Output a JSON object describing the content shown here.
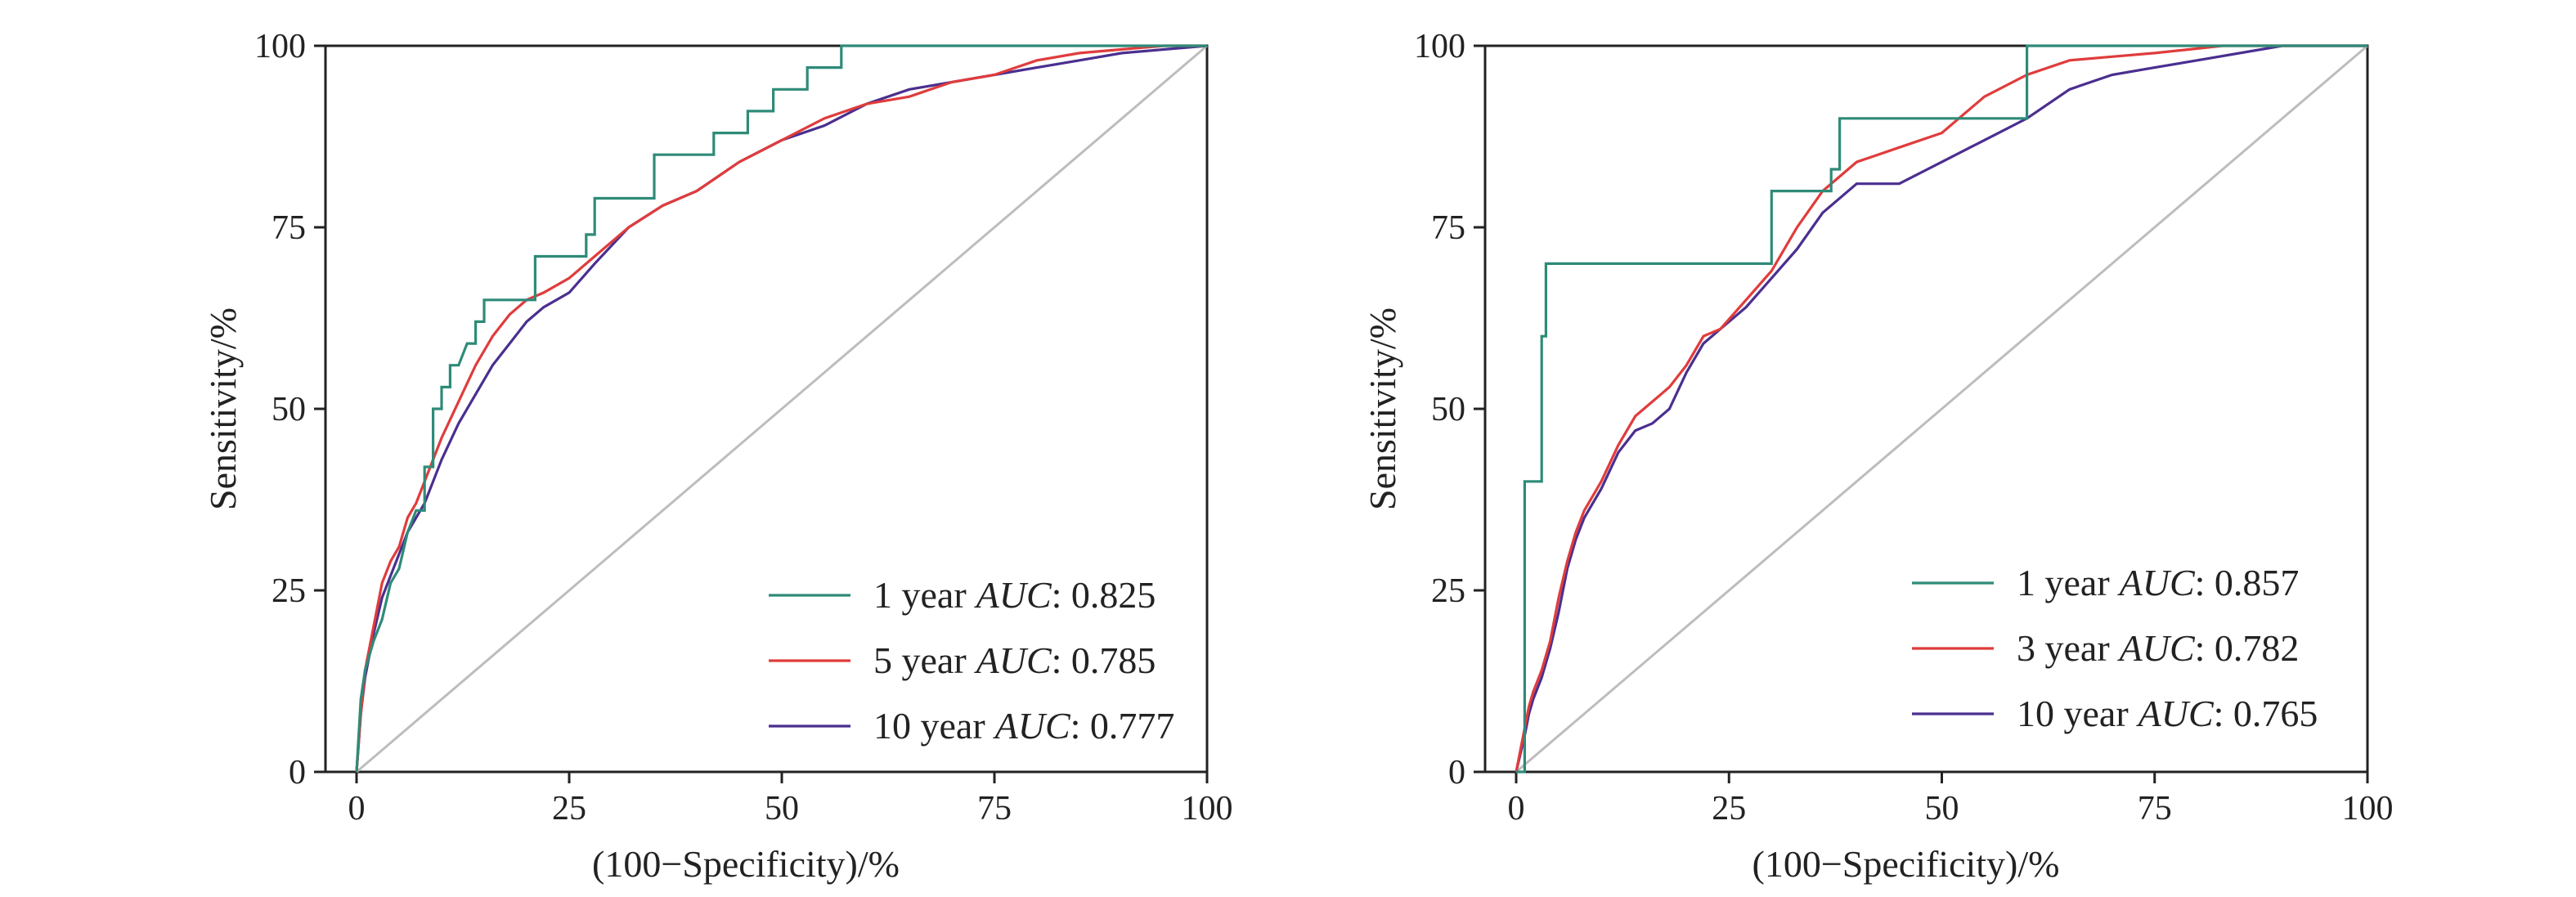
{
  "chart_data": [
    {
      "type": "line",
      "xlabel": "(100−Specificity)/%",
      "ylabel": "Sensitivity/%",
      "xlim": [
        0,
        100
      ],
      "ylim": [
        0,
        100
      ],
      "x_ticks": [
        "0",
        "25",
        "50",
        "75",
        "100"
      ],
      "y_ticks": [
        "0",
        "25",
        "50",
        "75",
        "100"
      ],
      "legend_position": "bottom-right",
      "reference_line": {
        "x": [
          0,
          100
        ],
        "y": [
          0,
          100
        ],
        "color": "#bdbdbd"
      },
      "series": [
        {
          "name": "1 year",
          "auc_label": "AUC",
          "auc_value": ": 0.825",
          "color": "#2e8b78",
          "x": [
            0,
            0.5,
            1,
            1,
            2,
            2,
            3,
            3,
            4,
            5,
            6,
            7,
            8,
            8,
            9,
            9,
            10,
            10,
            11,
            11,
            12,
            12,
            13,
            14,
            14,
            15,
            15,
            17,
            17,
            21,
            21,
            27,
            27,
            28,
            28,
            35,
            35,
            42,
            42,
            46,
            46,
            49,
            49,
            53,
            53,
            57,
            57,
            100
          ],
          "y": [
            0,
            10,
            14,
            14,
            18,
            18,
            21,
            21,
            26,
            28,
            33,
            36,
            36,
            42,
            42,
            50,
            50,
            53,
            53,
            56,
            56,
            56,
            59,
            59,
            62,
            62,
            65,
            65,
            65,
            65,
            71,
            71,
            74,
            74,
            79,
            79,
            85,
            85,
            88,
            88,
            91,
            91,
            94,
            94,
            97,
            97,
            100,
            100
          ]
        },
        {
          "name": "5 year",
          "auc_label": "AUC",
          "auc_value": ": 0.785",
          "color": "#e03c3c",
          "x": [
            0,
            0.5,
            1,
            2,
            3,
            4,
            5,
            6,
            7,
            8,
            10,
            12,
            14,
            16,
            18,
            20,
            22,
            25,
            28,
            32,
            36,
            40,
            45,
            50,
            55,
            60,
            65,
            70,
            75,
            80,
            85,
            90,
            95,
            100
          ],
          "y": [
            0,
            8,
            14,
            20,
            26,
            29,
            31,
            35,
            37,
            40,
            46,
            51,
            56,
            60,
            63,
            65,
            66,
            68,
            71,
            75,
            78,
            80,
            84,
            87,
            90,
            92,
            93,
            95,
            96,
            98,
            99,
            99.5,
            100,
            100
          ]
        },
        {
          "name": "10 year",
          "auc_label": "AUC",
          "auc_value": ": 0.777",
          "color": "#4a2f8f",
          "x": [
            0,
            0.5,
            1,
            2,
            3,
            4,
            5,
            6,
            7,
            8,
            10,
            12,
            14,
            16,
            18,
            20,
            22,
            25,
            28,
            32,
            36,
            40,
            45,
            50,
            55,
            60,
            65,
            70,
            75,
            80,
            85,
            90,
            95,
            100
          ],
          "y": [
            0,
            8,
            13,
            19,
            24,
            27,
            30,
            33,
            35,
            37,
            43,
            48,
            52,
            56,
            59,
            62,
            64,
            66,
            70,
            75,
            78,
            80,
            84,
            87,
            89,
            92,
            94,
            95,
            96,
            97,
            98,
            99,
            99.5,
            100
          ]
        }
      ]
    },
    {
      "type": "line",
      "xlabel": "(100−Specificity)/%",
      "ylabel": "Sensitivity/%",
      "xlim": [
        0,
        100
      ],
      "ylim": [
        0,
        100
      ],
      "x_ticks": [
        "0",
        "25",
        "50",
        "75",
        "100"
      ],
      "y_ticks": [
        "0",
        "25",
        "50",
        "75",
        "100"
      ],
      "legend_position": "bottom-right",
      "reference_line": {
        "x": [
          0,
          100
        ],
        "y": [
          0,
          100
        ],
        "color": "#bdbdbd"
      },
      "series": [
        {
          "name": "1 year",
          "auc_label": "AUC",
          "auc_value": ": 0.857",
          "color": "#2e8b78",
          "x": [
            0,
            1,
            1,
            3,
            3,
            3.5,
            3.5,
            30,
            30,
            37,
            37,
            38,
            38,
            60,
            60,
            100
          ],
          "y": [
            0,
            0,
            40,
            40,
            60,
            60,
            70,
            70,
            80,
            80,
            83,
            83,
            90,
            90,
            100,
            100
          ],
          "_note": "series 1 x-coords extend beyond visible gap"
        },
        {
          "name": "3 year",
          "auc_label": "AUC",
          "auc_value": ": 0.782",
          "color": "#e03c3c",
          "x": [
            0,
            1,
            1.5,
            2,
            3,
            4,
            5,
            6,
            7,
            8,
            10,
            12,
            14,
            16,
            18,
            20,
            22,
            24,
            27,
            30,
            33,
            36,
            40,
            45,
            50,
            55,
            60,
            65,
            70,
            75,
            83,
            90,
            100
          ],
          "y": [
            0,
            6,
            9,
            11,
            14,
            18,
            24,
            29,
            33,
            36,
            40,
            45,
            49,
            51,
            53,
            56,
            60,
            61,
            65,
            69,
            75,
            80,
            84,
            86,
            88,
            93,
            96,
            98,
            98.5,
            99,
            100,
            100,
            100
          ]
        },
        {
          "name": "10 year",
          "auc_label": "AUC",
          "auc_value": ": 0.765",
          "color": "#4a2f8f",
          "x": [
            0,
            1,
            1.5,
            2,
            3,
            4,
            5,
            6,
            7,
            8,
            10,
            12,
            14,
            16,
            18,
            20,
            22,
            24,
            27,
            30,
            33,
            36,
            40,
            45,
            50,
            55,
            60,
            65,
            70,
            75,
            80,
            90,
            100
          ],
          "y": [
            0,
            5,
            8,
            10,
            13,
            17,
            22,
            28,
            32,
            35,
            39,
            44,
            47,
            48,
            50,
            55,
            59,
            61,
            64,
            68,
            72,
            77,
            81,
            81,
            84,
            87,
            90,
            94,
            96,
            97,
            98,
            100,
            100
          ]
        }
      ]
    }
  ]
}
